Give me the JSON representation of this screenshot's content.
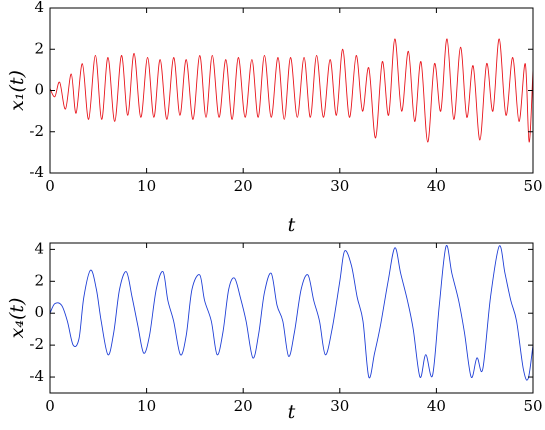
{
  "chart_data": [
    {
      "type": "line",
      "xlabel": "t",
      "ylabel": "x₁(t)",
      "xlim": [
        0,
        50
      ],
      "ylim": [
        -4,
        4
      ],
      "xticks": [
        0,
        10,
        20,
        30,
        40,
        50
      ],
      "yticks": [
        -4,
        -2,
        0,
        2,
        4
      ],
      "grid": false,
      "series": [
        {
          "color": "#e8141b",
          "x": [
            0,
            0.5,
            1,
            1.6,
            2.2,
            2.7,
            3.35,
            4.0,
            4.7,
            5.35,
            6.0,
            6.7,
            7.4,
            8.05,
            8.7,
            9.4,
            10.1,
            10.75,
            11.4,
            12.1,
            12.8,
            13.45,
            14.1,
            14.8,
            15.5,
            16.15,
            16.8,
            17.5,
            18.2,
            18.85,
            19.5,
            20.2,
            20.9,
            21.55,
            22.2,
            22.9,
            23.6,
            24.25,
            24.9,
            25.6,
            26.3,
            26.95,
            27.6,
            28.3,
            29.0,
            29.65,
            30.3,
            31.0,
            31.7,
            32.35,
            33.0,
            33.7,
            34.4,
            35.05,
            35.7,
            36.4,
            37.1,
            37.75,
            38.4,
            39.1,
            39.8,
            40.45,
            41.1,
            41.8,
            42.5,
            43.15,
            43.8,
            44.5,
            45.2,
            45.85,
            46.5,
            47.2,
            47.9,
            48.55,
            49.2,
            49.6,
            50
          ],
          "values": [
            0.1,
            -0.3,
            0.4,
            -0.9,
            0.8,
            -1.1,
            1.3,
            -1.4,
            1.7,
            -1.4,
            1.6,
            -1.5,
            1.7,
            -1.2,
            1.8,
            -1.3,
            1.6,
            -1.3,
            1.5,
            -1.4,
            1.6,
            -1.2,
            1.5,
            -1.4,
            1.7,
            -1.3,
            1.7,
            -1.3,
            1.5,
            -1.4,
            1.6,
            -1.3,
            1.5,
            -1.3,
            1.7,
            -1.3,
            1.6,
            -1.4,
            1.6,
            -1.3,
            1.6,
            -1.3,
            1.7,
            -1.3,
            1.5,
            -1.2,
            2.0,
            -1.3,
            1.7,
            -1.0,
            1.1,
            -2.3,
            1.4,
            -1.2,
            2.5,
            -1.0,
            1.9,
            -1.5,
            1.4,
            -2.5,
            1.3,
            -1.0,
            2.5,
            -1.4,
            2.1,
            -1.3,
            1.2,
            -2.4,
            1.3,
            -1.0,
            2.5,
            -1.2,
            1.6,
            -1.5,
            1.3,
            -2.5,
            1.0
          ]
        }
      ]
    },
    {
      "type": "line",
      "xlabel": "t",
      "ylabel": "x₄(t)",
      "xlim": [
        0,
        50
      ],
      "ylim": [
        -5,
        4.4
      ],
      "xticks": [
        0,
        10,
        20,
        30,
        40,
        50
      ],
      "yticks": [
        -4,
        -2,
        0,
        2,
        4
      ],
      "grid": false,
      "series": [
        {
          "color": "#1f3fd6",
          "x": [
            0,
            0.5,
            1.2,
            1.8,
            2.4,
            3.0,
            3.5,
            4.2,
            4.8,
            5.3,
            6.0,
            6.6,
            7.2,
            7.9,
            8.5,
            9.1,
            9.7,
            10.3,
            11.0,
            11.7,
            12.2,
            12.8,
            13.5,
            14.1,
            14.7,
            15.5,
            16.0,
            16.7,
            17.3,
            17.9,
            18.5,
            19.1,
            19.7,
            20.3,
            21.0,
            21.6,
            22.2,
            22.9,
            23.5,
            24.1,
            24.7,
            25.3,
            26.0,
            26.7,
            27.3,
            27.9,
            28.5,
            29.2,
            30.0,
            30.5,
            31.2,
            31.8,
            32.4,
            33.0,
            33.6,
            34.2,
            35.0,
            35.7,
            36.3,
            37.0,
            37.6,
            38.3,
            38.9,
            39.6,
            40.3,
            41.0,
            41.6,
            42.3,
            42.9,
            43.6,
            44.2,
            44.8,
            45.6,
            46.5,
            47.1,
            47.7,
            48.3,
            49.0,
            49.5,
            50.0
          ],
          "values": [
            0,
            0.6,
            0.5,
            -0.5,
            -2.0,
            -1.6,
            1.0,
            2.7,
            1.5,
            -0.5,
            -2.6,
            -1.2,
            1.5,
            2.6,
            1.0,
            -0.8,
            -2.5,
            -1.4,
            1.5,
            2.6,
            0.8,
            -0.5,
            -2.6,
            -1.4,
            1.5,
            2.4,
            0.8,
            -0.5,
            -2.6,
            -1.2,
            1.5,
            2.2,
            1.0,
            -0.5,
            -2.8,
            -1.3,
            1.3,
            2.5,
            0.5,
            -0.5,
            -2.7,
            -1.2,
            1.5,
            2.4,
            0.8,
            -0.5,
            -2.6,
            -1.0,
            2.0,
            3.9,
            3.0,
            1.0,
            -0.5,
            -4.0,
            -2.5,
            -0.8,
            2.0,
            4.1,
            2.5,
            0.8,
            -1.0,
            -4.0,
            -2.6,
            -3.9,
            0.5,
            4.2,
            2.5,
            0.8,
            -1.2,
            -4.0,
            -2.8,
            -3.5,
            1.0,
            4.2,
            2.5,
            0.8,
            -0.5,
            -3.5,
            -4.1,
            -2.0
          ]
        }
      ]
    }
  ]
}
